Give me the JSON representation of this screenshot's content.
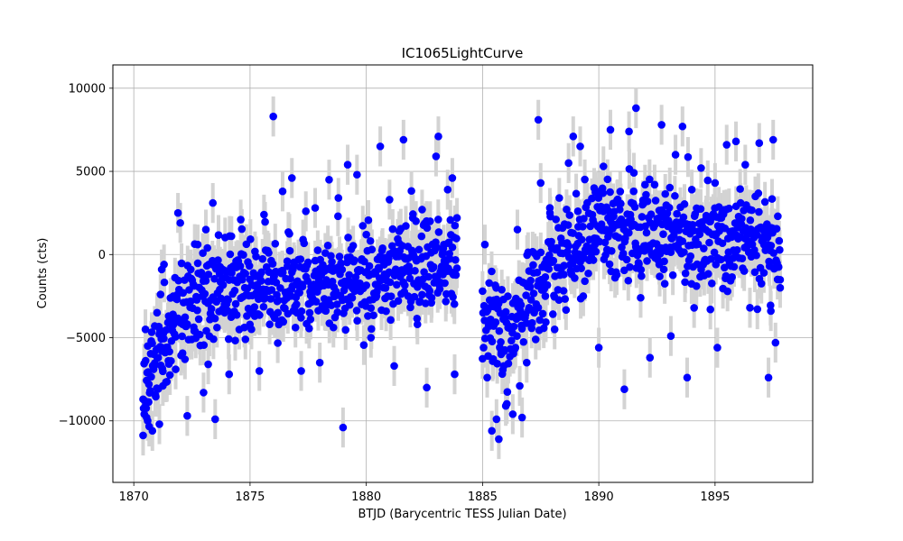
{
  "chart_data": {
    "type": "scatter",
    "title": "IC1065LightCurve",
    "xlabel": "BTJD (Barycentric TESS Julian Date)",
    "ylabel": "Counts (cts)",
    "xlim": [
      1869.1,
      1899.2
    ],
    "ylim": [
      -13700,
      11400
    ],
    "xticks": [
      1870,
      1875,
      1880,
      1885,
      1890,
      1895
    ],
    "yticks": [
      -10000,
      -5000,
      0,
      5000,
      10000
    ],
    "grid": true,
    "marker_color": "#0000ff",
    "errorbar_color": "#d3d3d3",
    "errorbar_halfwidth": 1200,
    "segments": [
      {
        "x_start": 1870.4,
        "x_end": 1883.9,
        "trend": [
          [
            1870.4,
            -8500
          ],
          [
            1871.0,
            -6000
          ],
          [
            1872.0,
            -3500
          ],
          [
            1874.0,
            -2200
          ],
          [
            1876.0,
            -1500
          ],
          [
            1878.0,
            -1800
          ],
          [
            1880.0,
            -1200
          ],
          [
            1882.0,
            -500
          ],
          [
            1883.9,
            -300
          ]
        ]
      },
      {
        "x_start": 1885.0,
        "x_end": 1897.8,
        "trend": [
          [
            1885.0,
            -3500
          ],
          [
            1886.0,
            -5000
          ],
          [
            1887.0,
            -2500
          ],
          [
            1888.0,
            -800
          ],
          [
            1889.0,
            500
          ],
          [
            1890.0,
            1200
          ],
          [
            1892.0,
            1500
          ],
          [
            1894.0,
            1200
          ],
          [
            1896.0,
            800
          ],
          [
            1897.8,
            0
          ]
        ]
      }
    ],
    "points": [
      [
        1870.4,
        -8700
      ],
      [
        1870.45,
        -9600
      ],
      [
        1870.5,
        -4500
      ],
      [
        1870.55,
        -9800
      ],
      [
        1870.6,
        -5500
      ],
      [
        1870.65,
        -7800
      ],
      [
        1870.75,
        -5200
      ],
      [
        1870.8,
        -10600
      ],
      [
        1870.85,
        -6900
      ],
      [
        1870.9,
        -4300
      ],
      [
        1871.0,
        -3500
      ],
      [
        1871.05,
        -6200
      ],
      [
        1871.1,
        -10200
      ],
      [
        1871.15,
        -2400
      ],
      [
        1871.2,
        -900
      ],
      [
        1871.25,
        -7900
      ],
      [
        1871.3,
        -600
      ],
      [
        1871.35,
        -5900
      ],
      [
        1871.5,
        -3700
      ],
      [
        1871.6,
        -6400
      ],
      [
        1871.7,
        -2500
      ],
      [
        1871.8,
        -6900
      ],
      [
        1871.9,
        2500
      ],
      [
        1872.0,
        1900
      ],
      [
        1872.1,
        -4200
      ],
      [
        1872.2,
        -6300
      ],
      [
        1872.3,
        -9700
      ],
      [
        1872.45,
        -900
      ],
      [
        1872.6,
        -4600
      ],
      [
        1872.75,
        600
      ],
      [
        1872.9,
        -1200
      ],
      [
        1873.0,
        -8300
      ],
      [
        1873.1,
        1500
      ],
      [
        1873.2,
        -6600
      ],
      [
        1873.4,
        3100
      ],
      [
        1873.5,
        -9900
      ],
      [
        1873.7,
        -2100
      ],
      [
        1873.9,
        -3000
      ],
      [
        1874.1,
        -7200
      ],
      [
        1874.2,
        1100
      ],
      [
        1874.4,
        -400
      ],
      [
        1874.6,
        2100
      ],
      [
        1874.8,
        -5100
      ],
      [
        1875.0,
        -1500
      ],
      [
        1875.2,
        -3700
      ],
      [
        1875.4,
        -7000
      ],
      [
        1875.6,
        2400
      ],
      [
        1875.8,
        -2200
      ],
      [
        1876.0,
        8300
      ],
      [
        1876.2,
        -3500
      ],
      [
        1876.4,
        3800
      ],
      [
        1876.6,
        -400
      ],
      [
        1876.8,
        4600
      ],
      [
        1877.0,
        -1700
      ],
      [
        1877.2,
        -7000
      ],
      [
        1877.4,
        2600
      ],
      [
        1877.6,
        -3900
      ],
      [
        1877.8,
        2800
      ],
      [
        1878.0,
        -6500
      ],
      [
        1878.2,
        -1000
      ],
      [
        1878.4,
        4500
      ],
      [
        1878.6,
        -2400
      ],
      [
        1878.8,
        3400
      ],
      [
        1879.0,
        -10400
      ],
      [
        1879.2,
        5400
      ],
      [
        1879.4,
        -1700
      ],
      [
        1879.6,
        4800
      ],
      [
        1879.8,
        -3000
      ],
      [
        1880.0,
        1200
      ],
      [
        1880.2,
        -5000
      ],
      [
        1880.4,
        -1800
      ],
      [
        1880.6,
        6500
      ],
      [
        1880.8,
        -200
      ],
      [
        1881.0,
        3300
      ],
      [
        1881.2,
        -6700
      ],
      [
        1881.4,
        700
      ],
      [
        1881.6,
        6900
      ],
      [
        1881.8,
        -2500
      ],
      [
        1882.0,
        2200
      ],
      [
        1882.2,
        -4200
      ],
      [
        1882.4,
        2700
      ],
      [
        1882.6,
        -8000
      ],
      [
        1882.8,
        -2900
      ],
      [
        1883.0,
        5900
      ],
      [
        1883.1,
        7100
      ],
      [
        1883.3,
        -1200
      ],
      [
        1883.5,
        3900
      ],
      [
        1883.7,
        4600
      ],
      [
        1883.8,
        -7200
      ],
      [
        1883.9,
        2200
      ],
      [
        1885.0,
        -2200
      ],
      [
        1885.1,
        600
      ],
      [
        1885.2,
        -7400
      ],
      [
        1885.3,
        -4300
      ],
      [
        1885.4,
        -10600
      ],
      [
        1885.5,
        -3000
      ],
      [
        1885.6,
        -9900
      ],
      [
        1885.7,
        -11100
      ],
      [
        1885.8,
        -6000
      ],
      [
        1885.9,
        -2700
      ],
      [
        1886.0,
        -9100
      ],
      [
        1886.1,
        -4400
      ],
      [
        1886.3,
        -9600
      ],
      [
        1886.5,
        1500
      ],
      [
        1886.6,
        -7900
      ],
      [
        1886.7,
        -9800
      ],
      [
        1886.9,
        -6500
      ],
      [
        1887.0,
        -3200
      ],
      [
        1887.2,
        -1100
      ],
      [
        1887.4,
        8100
      ],
      [
        1887.5,
        4300
      ],
      [
        1887.7,
        -2500
      ],
      [
        1887.9,
        2500
      ],
      [
        1888.1,
        -4500
      ],
      [
        1888.3,
        3400
      ],
      [
        1888.5,
        -1200
      ],
      [
        1888.7,
        5500
      ],
      [
        1888.9,
        7100
      ],
      [
        1889.1,
        2600
      ],
      [
        1889.2,
        6500
      ],
      [
        1889.4,
        -1600
      ],
      [
        1889.6,
        900
      ],
      [
        1889.8,
        4000
      ],
      [
        1890.0,
        -5600
      ],
      [
        1890.2,
        5300
      ],
      [
        1890.4,
        2200
      ],
      [
        1890.5,
        7500
      ],
      [
        1890.7,
        -1400
      ],
      [
        1890.9,
        2700
      ],
      [
        1891.1,
        -8100
      ],
      [
        1891.3,
        7400
      ],
      [
        1891.5,
        3800
      ],
      [
        1891.6,
        8800
      ],
      [
        1891.8,
        -2600
      ],
      [
        1892.0,
        1700
      ],
      [
        1892.2,
        -6200
      ],
      [
        1892.4,
        4200
      ],
      [
        1892.6,
        -600
      ],
      [
        1892.7,
        7800
      ],
      [
        1892.9,
        2100
      ],
      [
        1893.1,
        -4900
      ],
      [
        1893.3,
        6000
      ],
      [
        1893.5,
        200
      ],
      [
        1893.6,
        7700
      ],
      [
        1893.8,
        -7400
      ],
      [
        1894.0,
        3900
      ],
      [
        1894.2,
        -1900
      ],
      [
        1894.4,
        5200
      ],
      [
        1894.6,
        1500
      ],
      [
        1894.8,
        -3300
      ],
      [
        1895.0,
        4300
      ],
      [
        1895.1,
        -5600
      ],
      [
        1895.3,
        2500
      ],
      [
        1895.5,
        6600
      ],
      [
        1895.7,
        -700
      ],
      [
        1895.9,
        6800
      ],
      [
        1896.1,
        3100
      ],
      [
        1896.3,
        5400
      ],
      [
        1896.5,
        -3200
      ],
      [
        1896.7,
        1300
      ],
      [
        1896.9,
        6700
      ],
      [
        1897.1,
        -1100
      ],
      [
        1897.3,
        -7400
      ],
      [
        1897.4,
        -3400
      ],
      [
        1897.5,
        6900
      ],
      [
        1897.6,
        -5300
      ],
      [
        1897.7,
        2300
      ],
      [
        1897.8,
        -2000
      ]
    ]
  }
}
